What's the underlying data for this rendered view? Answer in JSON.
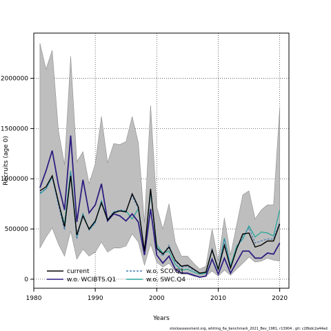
{
  "chart_data": {
    "type": "line",
    "xlabel": "Years",
    "ylabel": "Recruits (age 0)",
    "xlim": [
      1980,
      2021.5
    ],
    "ylim": [
      -90000,
      2450000
    ],
    "xticks": [
      1980,
      1990,
      2000,
      2010,
      2020
    ],
    "yticks": [
      0,
      500000,
      1000000,
      1500000,
      2000000
    ],
    "ytick_labels": [
      "0",
      "500000",
      "1000000",
      "1500000",
      "2000000"
    ],
    "grid": true,
    "legend_position": "bottom-left",
    "x": [
      1981,
      1982,
      1983,
      1984,
      1985,
      1986,
      1987,
      1988,
      1989,
      1990,
      1991,
      1992,
      1993,
      1994,
      1995,
      1996,
      1997,
      1998,
      1999,
      2000,
      2001,
      2002,
      2003,
      2004,
      2005,
      2006,
      2007,
      2008,
      2009,
      2010,
      2011,
      2012,
      2013,
      2014,
      2015,
      2016,
      2017,
      2018,
      2019,
      2020
    ],
    "band": {
      "color": "#bebebe",
      "upper": [
        2350000,
        2090000,
        2280000,
        1480000,
        1140000,
        2220000,
        1170000,
        1270000,
        950000,
        1150000,
        1620000,
        1160000,
        1350000,
        1340000,
        1370000,
        1620000,
        1360000,
        560000,
        1730000,
        720000,
        500000,
        750000,
        370000,
        230000,
        230000,
        160000,
        100000,
        130000,
        500000,
        180000,
        610000,
        240000,
        540000,
        840000,
        880000,
        600000,
        690000,
        740000,
        740000,
        1700000
      ],
      "lower": [
        310000,
        420000,
        510000,
        350000,
        230000,
        480000,
        200000,
        300000,
        230000,
        270000,
        370000,
        270000,
        310000,
        310000,
        330000,
        450000,
        370000,
        140000,
        350000,
        170000,
        120000,
        160000,
        80000,
        50000,
        50000,
        30000,
        20000,
        30000,
        80000,
        30000,
        90000,
        40000,
        100000,
        160000,
        220000,
        170000,
        180000,
        210000,
        190000,
        180000
      ]
    },
    "series": [
      {
        "name": "current",
        "color": "#000000",
        "dash": "",
        "values": [
          880000,
          920000,
          1030000,
          770000,
          520000,
          1030000,
          440000,
          630000,
          500000,
          580000,
          760000,
          590000,
          660000,
          680000,
          670000,
          850000,
          720000,
          280000,
          900000,
          310000,
          250000,
          320000,
          190000,
          130000,
          140000,
          100000,
          60000,
          70000,
          290000,
          100000,
          340000,
          110000,
          300000,
          450000,
          460000,
          320000,
          340000,
          380000,
          380000,
          550000
        ]
      },
      {
        "name": "w.o. WCIBTS.Q1",
        "color": "#2d1d80",
        "dash": "",
        "values": [
          910000,
          1080000,
          1280000,
          940000,
          690000,
          1430000,
          570000,
          990000,
          660000,
          740000,
          950000,
          580000,
          650000,
          630000,
          580000,
          650000,
          570000,
          240000,
          700000,
          240000,
          160000,
          230000,
          100000,
          60000,
          60000,
          40000,
          20000,
          30000,
          200000,
          50000,
          210000,
          60000,
          170000,
          280000,
          280000,
          210000,
          210000,
          260000,
          250000,
          360000
        ]
      },
      {
        "name": "w.o. SCO.Q1",
        "color": "#3f7bb8",
        "dash": "3,2",
        "values": [
          860000,
          900000,
          1020000,
          740000,
          490000,
          1060000,
          400000,
          650000,
          490000,
          560000,
          780000,
          600000,
          670000,
          690000,
          680000,
          830000,
          700000,
          270000,
          880000,
          300000,
          230000,
          340000,
          180000,
          120000,
          130000,
          90000,
          60000,
          70000,
          300000,
          100000,
          400000,
          120000,
          300000,
          430000,
          510000,
          360000,
          380000,
          400000,
          400000,
          570000
        ]
      },
      {
        "name": "w.o. SWC.Q4",
        "color": "#2aa69a",
        "dash": "",
        "values": [
          850000,
          900000,
          1020000,
          760000,
          550000,
          1080000,
          430000,
          650000,
          490000,
          570000,
          780000,
          580000,
          670000,
          680000,
          680000,
          600000,
          700000,
          280000,
          870000,
          340000,
          260000,
          280000,
          150000,
          90000,
          100000,
          70000,
          50000,
          60000,
          290000,
          90000,
          410000,
          130000,
          330000,
          400000,
          530000,
          420000,
          470000,
          460000,
          430000,
          690000
        ]
      }
    ]
  },
  "footer": "stockassessment.org, whiting_6a_benchmark_2021_Bev_1981, r13904 , git: c28bdc2a44ad"
}
